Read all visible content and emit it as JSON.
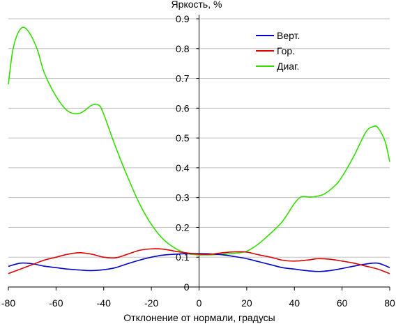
{
  "chart_data": {
    "type": "line",
    "title": "",
    "ylabel": "Яркость, %",
    "xlabel": "Отклонение от нормали, градусы",
    "xlim": [
      -80,
      80
    ],
    "ylim": [
      0,
      0.9
    ],
    "xticks": [
      -80,
      -60,
      -40,
      -20,
      0,
      20,
      40,
      60,
      80
    ],
    "yticks": [
      "0",
      "0.1",
      "0.2",
      "0.3",
      "0.4",
      "0.5",
      "0.6",
      "0.7",
      "0.8",
      "0.9"
    ],
    "grid": "horizontal",
    "legend_position": "top-right",
    "series": [
      {
        "name": "Верт.",
        "color": "#0000cc",
        "points": [
          [
            -80,
            0.069
          ],
          [
            -75,
            0.08
          ],
          [
            -70,
            0.078
          ],
          [
            -65,
            0.07
          ],
          [
            -60,
            0.065
          ],
          [
            -55,
            0.06
          ],
          [
            -50,
            0.057
          ],
          [
            -45,
            0.055
          ],
          [
            -40,
            0.058
          ],
          [
            -35,
            0.065
          ],
          [
            -30,
            0.078
          ],
          [
            -25,
            0.09
          ],
          [
            -20,
            0.1
          ],
          [
            -15,
            0.107
          ],
          [
            -10,
            0.11
          ],
          [
            -5,
            0.112
          ],
          [
            0,
            0.112
          ],
          [
            5,
            0.111
          ],
          [
            10,
            0.108
          ],
          [
            15,
            0.102
          ],
          [
            20,
            0.095
          ],
          [
            25,
            0.085
          ],
          [
            30,
            0.075
          ],
          [
            35,
            0.065
          ],
          [
            40,
            0.06
          ],
          [
            45,
            0.055
          ],
          [
            50,
            0.052
          ],
          [
            55,
            0.055
          ],
          [
            60,
            0.062
          ],
          [
            65,
            0.07
          ],
          [
            70,
            0.077
          ],
          [
            75,
            0.08
          ],
          [
            80,
            0.065
          ]
        ]
      },
      {
        "name": "Гор.",
        "color": "#dd0000",
        "points": [
          [
            -80,
            0.045
          ],
          [
            -75,
            0.06
          ],
          [
            -70,
            0.075
          ],
          [
            -65,
            0.09
          ],
          [
            -60,
            0.1
          ],
          [
            -55,
            0.11
          ],
          [
            -50,
            0.115
          ],
          [
            -45,
            0.11
          ],
          [
            -40,
            0.1
          ],
          [
            -35,
            0.098
          ],
          [
            -30,
            0.11
          ],
          [
            -25,
            0.123
          ],
          [
            -20,
            0.128
          ],
          [
            -15,
            0.127
          ],
          [
            -10,
            0.12
          ],
          [
            -5,
            0.114
          ],
          [
            0,
            0.11
          ],
          [
            5,
            0.11
          ],
          [
            10,
            0.115
          ],
          [
            15,
            0.118
          ],
          [
            20,
            0.117
          ],
          [
            25,
            0.108
          ],
          [
            30,
            0.1
          ],
          [
            35,
            0.09
          ],
          [
            40,
            0.087
          ],
          [
            45,
            0.09
          ],
          [
            50,
            0.095
          ],
          [
            55,
            0.093
          ],
          [
            60,
            0.087
          ],
          [
            65,
            0.08
          ],
          [
            70,
            0.07
          ],
          [
            75,
            0.06
          ],
          [
            80,
            0.045
          ]
        ]
      },
      {
        "name": "Диаг.",
        "color": "#33dd00",
        "points": [
          [
            -80,
            0.68
          ],
          [
            -78,
            0.8
          ],
          [
            -75,
            0.865
          ],
          [
            -72,
            0.862
          ],
          [
            -68,
            0.8
          ],
          [
            -65,
            0.72
          ],
          [
            -60,
            0.64
          ],
          [
            -55,
            0.59
          ],
          [
            -50,
            0.583
          ],
          [
            -45,
            0.61
          ],
          [
            -42,
            0.61
          ],
          [
            -40,
            0.58
          ],
          [
            -35,
            0.47
          ],
          [
            -30,
            0.37
          ],
          [
            -25,
            0.28
          ],
          [
            -20,
            0.21
          ],
          [
            -15,
            0.16
          ],
          [
            -10,
            0.13
          ],
          [
            -5,
            0.112
          ],
          [
            0,
            0.108
          ],
          [
            5,
            0.108
          ],
          [
            10,
            0.11
          ],
          [
            15,
            0.113
          ],
          [
            20,
            0.12
          ],
          [
            25,
            0.145
          ],
          [
            30,
            0.18
          ],
          [
            35,
            0.22
          ],
          [
            40,
            0.28
          ],
          [
            43,
            0.303
          ],
          [
            47,
            0.302
          ],
          [
            52,
            0.31
          ],
          [
            57,
            0.34
          ],
          [
            60,
            0.37
          ],
          [
            65,
            0.44
          ],
          [
            70,
            0.52
          ],
          [
            73,
            0.538
          ],
          [
            75,
            0.535
          ],
          [
            78,
            0.49
          ],
          [
            80,
            0.42
          ]
        ]
      }
    ]
  }
}
